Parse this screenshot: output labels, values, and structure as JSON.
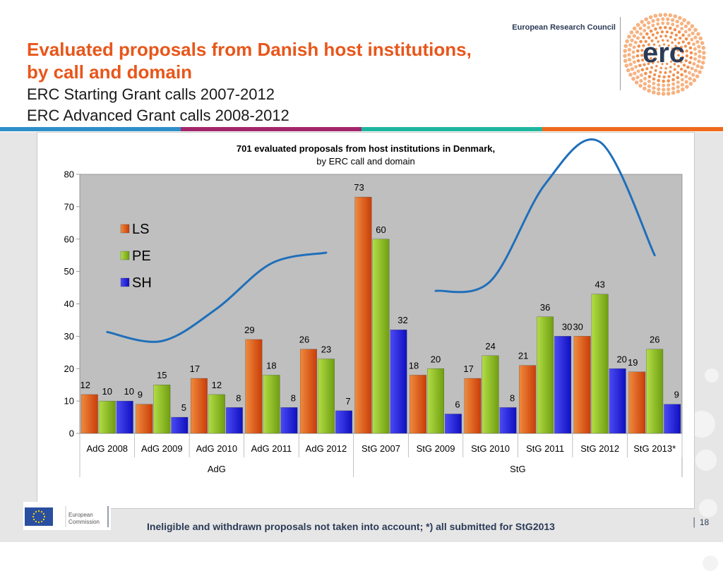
{
  "header": {
    "title_line1": "Evaluated proposals from Danish host institutions,",
    "title_line2": "by call and domain",
    "subtitle_line1": "ERC Starting Grant calls 2007-2012",
    "subtitle_line2": "ERC Advanced Grant calls 2008-2012",
    "brand": "European Research Council",
    "logo_text": "erc"
  },
  "footer": {
    "commission_label_1": "European",
    "commission_label_2": "Commission",
    "note": "Ineligible and withdrawn proposals not taken into account; *) all submitted for StG2013",
    "page_number": "18"
  },
  "colors": {
    "title": "#e8561a",
    "LS": "#e8561a",
    "PE": "#8fc31f",
    "SH": "#1c1ce0",
    "stripes": [
      "#2e8fc9",
      "#a3266a",
      "#1fb6a0",
      "#ef6a1c"
    ],
    "trend_line": "#1f6fba"
  },
  "chart_data": {
    "type": "bar",
    "title": "701 evaluated proposals from host institutions in Denmark,",
    "subtitle": "by ERC call and domain",
    "categories": [
      "AdG 2008",
      "AdG 2009",
      "AdG 2010",
      "AdG 2011",
      "AdG 2012",
      "StG 2007",
      "StG 2009",
      "StG 2010",
      "StG 2011",
      "StG 2012",
      "StG 2013*"
    ],
    "groups": [
      {
        "label": "AdG",
        "count": 5
      },
      {
        "label": "StG",
        "count": 6
      }
    ],
    "series": [
      {
        "name": "LS",
        "values": [
          12,
          9,
          17,
          29,
          26,
          73,
          18,
          17,
          21,
          30,
          19
        ]
      },
      {
        "name": "PE",
        "values": [
          10,
          15,
          12,
          18,
          23,
          60,
          20,
          24,
          36,
          43,
          26
        ]
      },
      {
        "name": "SH",
        "values": [
          10,
          5,
          8,
          8,
          7,
          32,
          6,
          8,
          30,
          20,
          9
        ]
      }
    ],
    "ylim": [
      0,
      80
    ],
    "yticks": [
      0,
      10,
      20,
      30,
      40,
      50,
      60,
      70,
      80
    ],
    "grid": false,
    "legend": "left",
    "trend_lines": [
      {
        "name": "AdG trend",
        "points": [
          [
            0,
            31.3
          ],
          [
            1,
            28.5
          ],
          [
            2,
            38.5
          ],
          [
            3,
            52.5
          ],
          [
            4,
            55.8
          ]
        ]
      },
      {
        "name": "StG trend",
        "points": [
          [
            6,
            44
          ],
          [
            7,
            47
          ],
          [
            8,
            77
          ],
          [
            9,
            90
          ],
          [
            10,
            55
          ]
        ]
      }
    ]
  }
}
